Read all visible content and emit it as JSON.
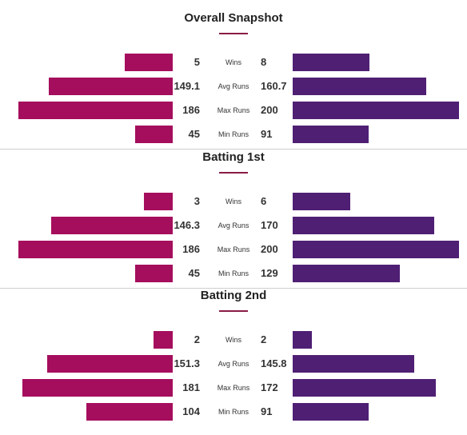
{
  "chart_data": [
    {
      "type": "bar",
      "title": "Overall Snapshot",
      "categories": [
        "Wins",
        "Avg Runs",
        "Max Runs",
        "Min Runs"
      ],
      "series": [
        {
          "values": [
            5,
            149.1,
            186,
            45
          ]
        },
        {
          "values": [
            8,
            160.7,
            200,
            91
          ]
        }
      ]
    },
    {
      "type": "bar",
      "title": "Batting 1st",
      "categories": [
        "Wins",
        "Avg Runs",
        "Max Runs",
        "Min Runs"
      ],
      "series": [
        {
          "values": [
            3,
            146.3,
            186,
            45
          ]
        },
        {
          "values": [
            6,
            170,
            200,
            129
          ]
        }
      ]
    },
    {
      "type": "bar",
      "title": "Batting 2nd",
      "categories": [
        "Wins",
        "Avg Runs",
        "Max Runs",
        "Min Runs"
      ],
      "series": [
        {
          "values": [
            2,
            151.3,
            181,
            104
          ]
        },
        {
          "values": [
            2,
            145.8,
            172,
            91
          ]
        }
      ]
    }
  ],
  "colors": {
    "left": "#a50d5d",
    "right": "#4f1f74",
    "accent": "#8a1c45"
  }
}
